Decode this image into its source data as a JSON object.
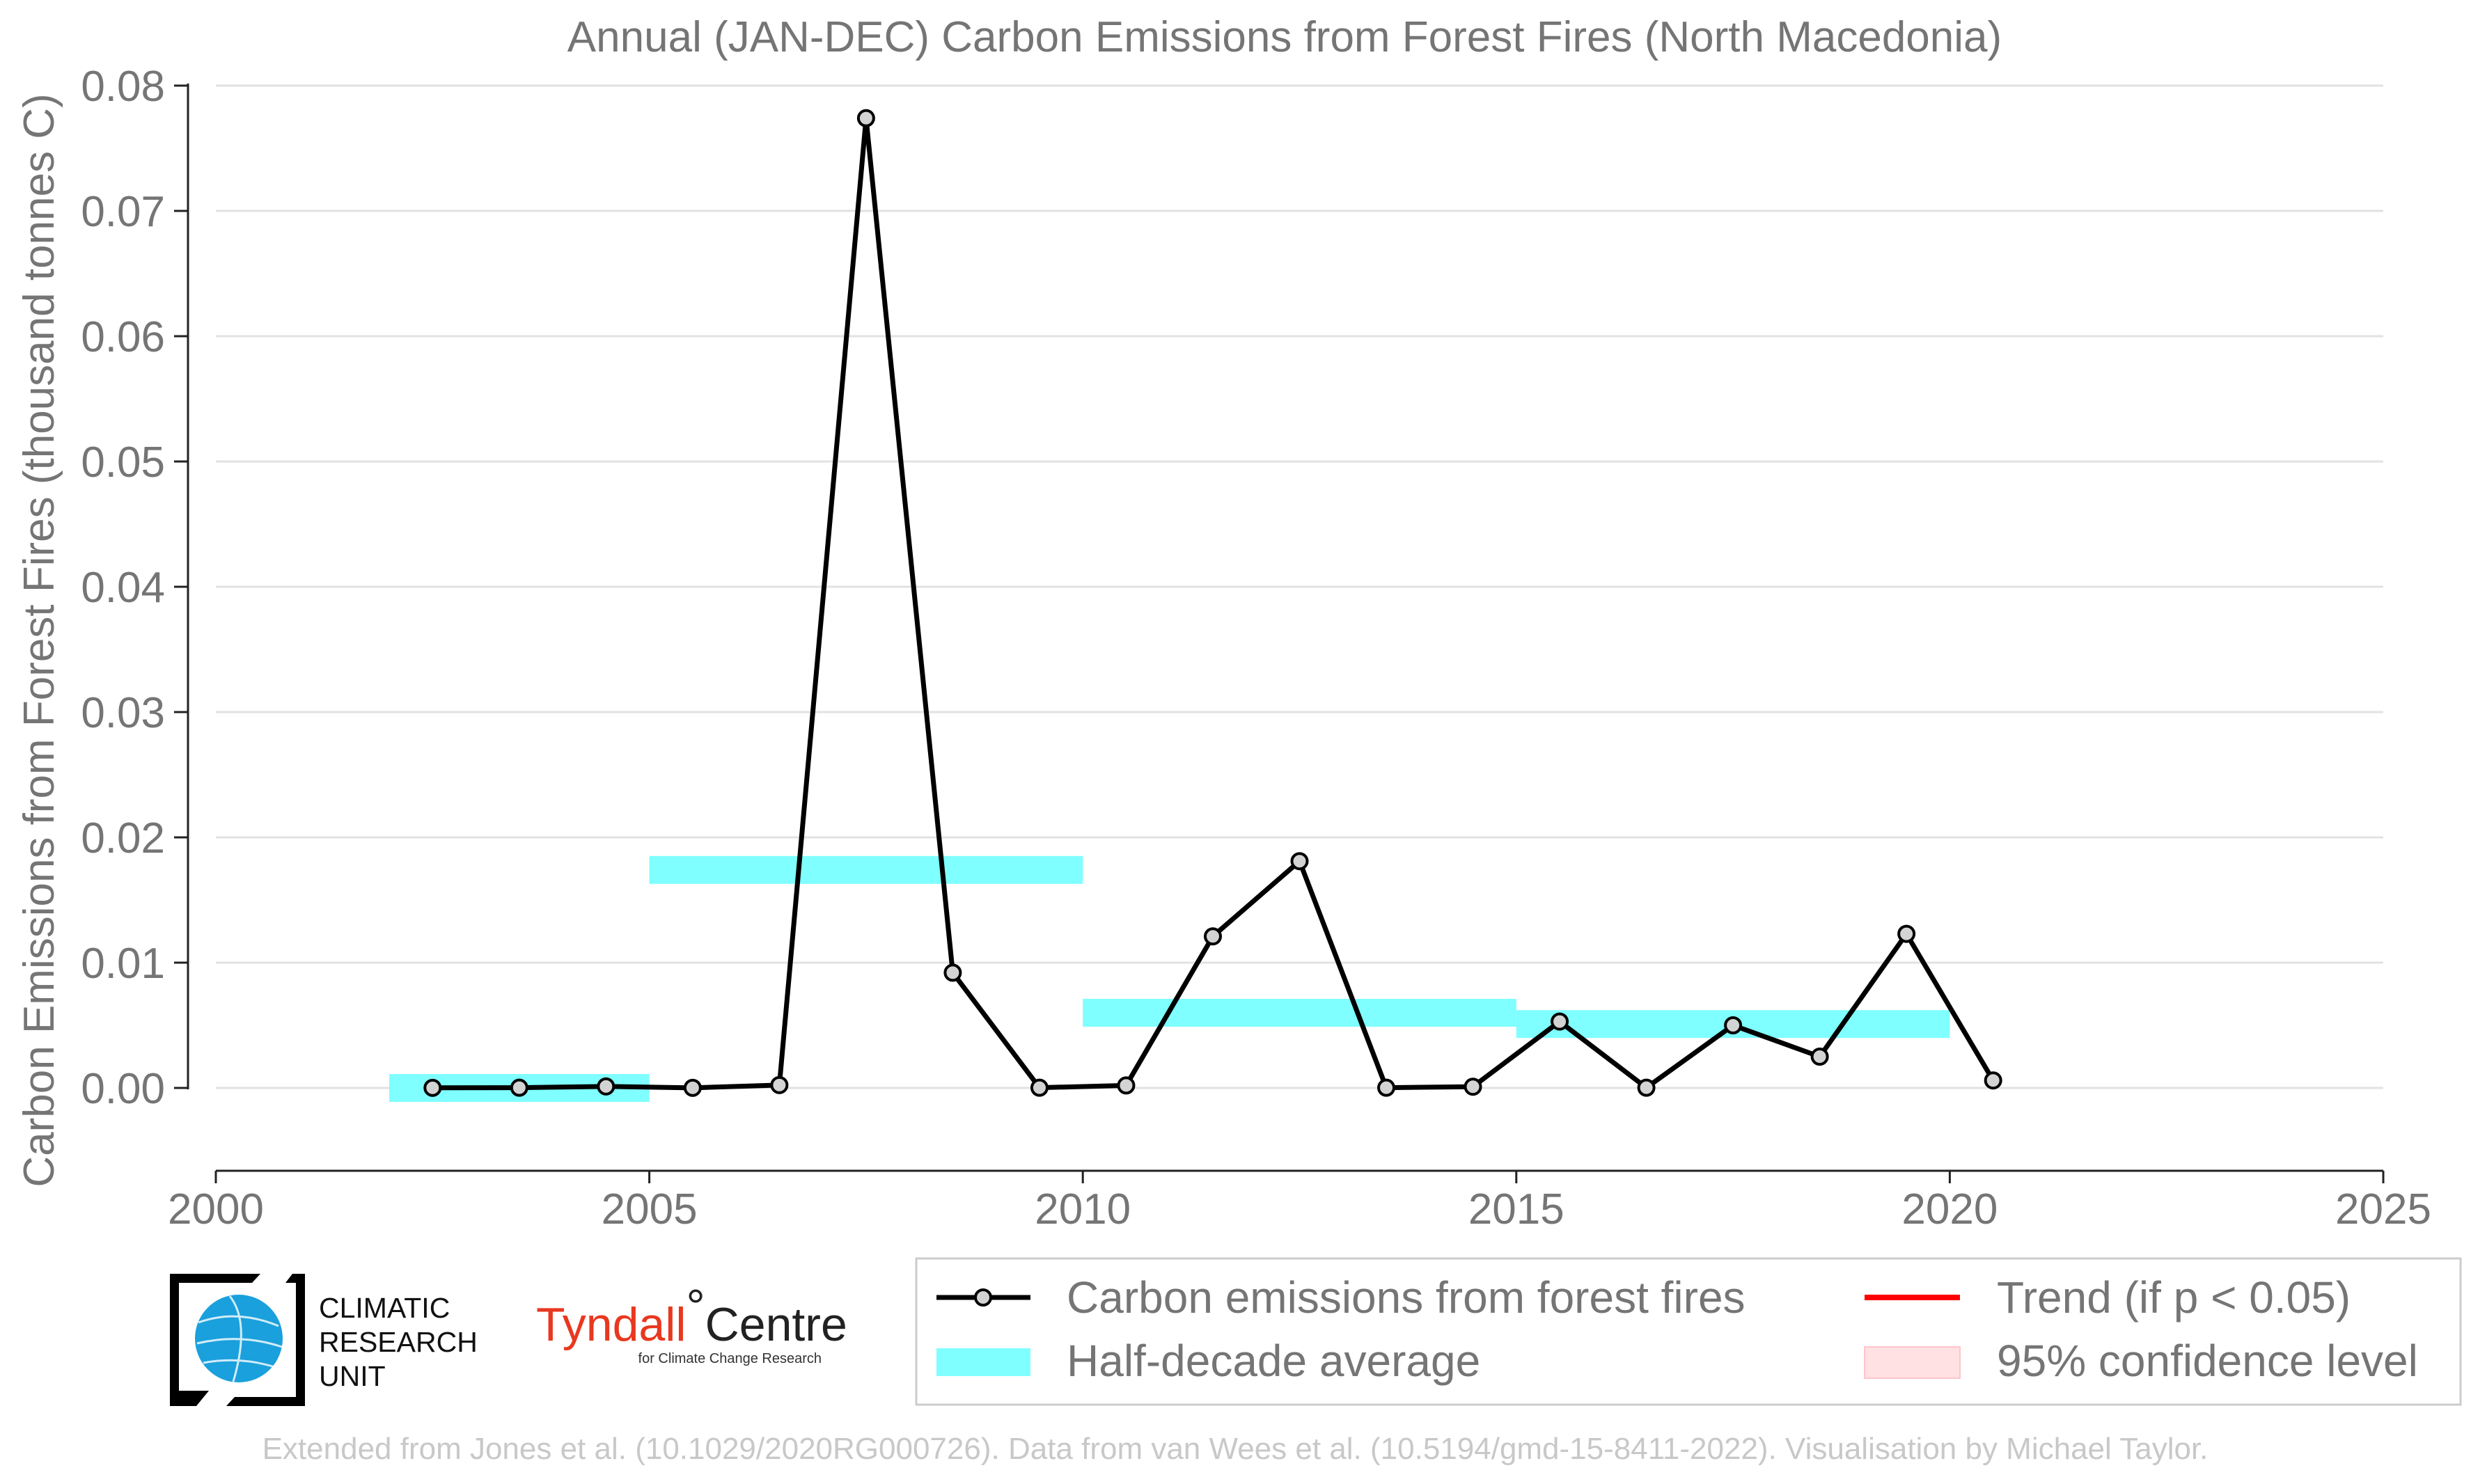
{
  "chart_data": {
    "type": "line",
    "title": "Annual (JAN-DEC) Carbon Emissions from Forest Fires (North Macedonia)",
    "xlabel": "",
    "ylabel": "Carbon Emissions from Forest Fires (thousand tonnes C)",
    "xlim": [
      2000,
      2025
    ],
    "ylim": [
      -0.0065,
      0.08
    ],
    "x_ticks": [
      "2000",
      "2005",
      "2010",
      "2015",
      "2020",
      "2025"
    ],
    "y_ticks": [
      "0.00",
      "0.01",
      "0.02",
      "0.03",
      "0.04",
      "0.05",
      "0.06",
      "0.07",
      "0.08"
    ],
    "grid": "horizontal",
    "series": [
      {
        "name": "Carbon emissions from forest fires",
        "color": "#000000",
        "marker_color": "#d3d3d3",
        "x": [
          2002.5,
          2003.5,
          2004.5,
          2005.5,
          2006.5,
          2007.5,
          2008.5,
          2009.5,
          2010.5,
          2011.5,
          2012.5,
          2013.5,
          2014.5,
          2015.5,
          2016.5,
          2017.5,
          2018.5,
          2019.5,
          2020.5
        ],
        "y": [
          1e-05,
          2e-05,
          0.00012,
          1e-05,
          0.00023,
          0.0774,
          0.0092,
          2e-05,
          0.0002,
          0.0121,
          0.0181,
          2e-05,
          0.0001,
          0.0053,
          2e-05,
          0.005,
          0.0025,
          0.0123,
          0.0006
        ]
      }
    ],
    "half_decade_average": {
      "name": "Half-decade average",
      "color": "#7fffff",
      "bars": [
        {
          "start": 2002,
          "end": 2005,
          "value": 0.0
        },
        {
          "start": 2005,
          "end": 2010,
          "value": 0.0174
        },
        {
          "start": 2010,
          "end": 2015,
          "value": 0.006
        },
        {
          "start": 2015,
          "end": 2020,
          "value": 0.0051
        }
      ]
    },
    "legend": {
      "position": "bottom-right",
      "entries": [
        {
          "label": "Carbon emissions from forest fires",
          "kind": "line-marker",
          "color": "#000000"
        },
        {
          "label": "Trend (if p < 0.05)",
          "kind": "line",
          "color": "#ff0000"
        },
        {
          "label": "Half-decade average",
          "kind": "band",
          "color": "#7fffff"
        },
        {
          "label": "95% confidence level",
          "kind": "band",
          "color": "#ffe0e3"
        }
      ]
    }
  },
  "logos": {
    "cru": {
      "line1": "CLIMATIC",
      "line2": "RESEARCH",
      "line3": "UNIT"
    },
    "tyndall": {
      "name_a": "Tyndall",
      "degree": "°",
      "name_b": "Centre",
      "sub": "for Climate Change Research"
    }
  },
  "footer": "Extended from Jones et al. (10.1029/2020RG000726). Data from van Wees et al. (10.5194/gmd-15-8411-2022). Visualisation by Michael Taylor."
}
